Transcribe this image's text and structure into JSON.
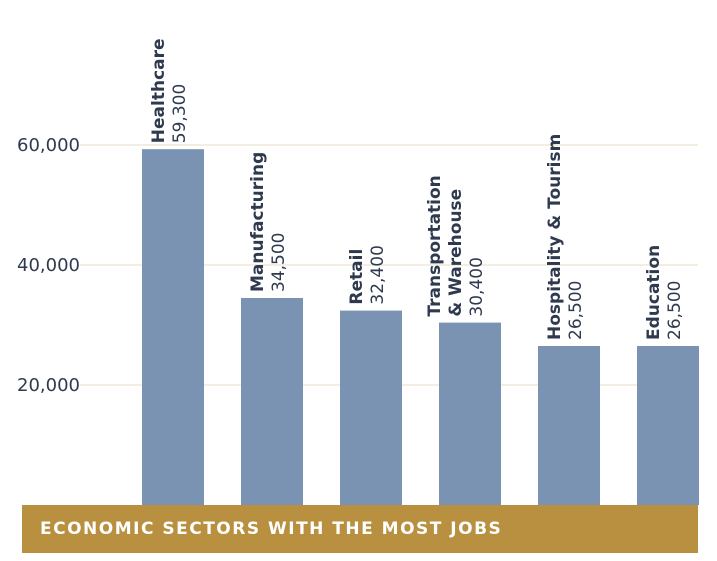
{
  "chart_data": {
    "type": "bar",
    "title": "ECONOMIC SECTORS WITH THE MOST JOBS",
    "xlabel": "",
    "ylabel": "",
    "categories": [
      [
        "Healthcare"
      ],
      [
        "Manufacturing"
      ],
      [
        "Retail"
      ],
      [
        "Transportation",
        "& Warehouse"
      ],
      [
        "Hospitality & Tourism"
      ],
      [
        "Education"
      ]
    ],
    "values": [
      59300,
      34500,
      32400,
      30400,
      26500,
      26500
    ],
    "data_labels": [
      "59,300",
      "34,500",
      "32,400",
      "30,400",
      "26,500",
      "26,500"
    ],
    "yticks": [
      20000,
      40000,
      60000
    ],
    "ytick_labels": [
      "20,000",
      "40,000",
      "60,000"
    ],
    "ylim": [
      0,
      65000
    ],
    "grid": true,
    "legend": "none"
  },
  "colors": {
    "bar": "#7a93b3",
    "grid": "#e8dcc2",
    "text": "#2f3a4f",
    "footer_bg": "#b8903f",
    "footer_text": "#ffffff"
  }
}
